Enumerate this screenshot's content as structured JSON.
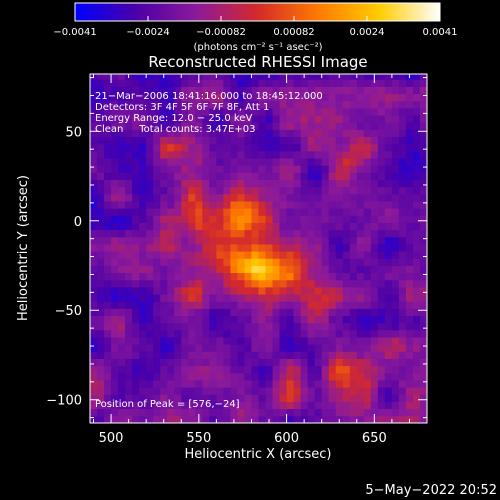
{
  "chart_data": {
    "type": "heatmap",
    "title": "Reconstructed RHESSI Image",
    "xlabel": "Heliocentric X (arcsec)",
    "ylabel": "Heliocentric Y (arcsec)",
    "xlim": [
      488,
      680
    ],
    "ylim": [
      -113,
      82
    ],
    "x_ticks": [
      "500",
      "550",
      "600",
      "650"
    ],
    "y_ticks": [
      "50",
      "0",
      "−50",
      "−100"
    ],
    "colorbar": {
      "range": [
        -0.0041,
        0.0041
      ],
      "ticks": [
        "−0.0041",
        "−0.0024",
        "−0.00082",
        "0.00082",
        "0.0024",
        "0.0041"
      ],
      "units": "(photons cm⁻² s⁻¹ asec⁻²)",
      "colors": [
        "#0000ff",
        "#4b00a8",
        "#8c1a9a",
        "#d42a2a",
        "#ff7a00",
        "#ffcc00",
        "#ffffff"
      ]
    },
    "annotations": [
      "21−Mar−2006 18:41:16.000 to 18:45:12.000",
      "Detectors: 3F 4F 5F 6F 7F 8F, Att 1",
      "Energy Range: 12.0 − 25.0 keV",
      "Clean     Total counts: 3.47E+03"
    ],
    "peak_label": "Position of Peak = [576,−24]",
    "peak_position": [
      576,
      -24
    ],
    "sources": [
      {
        "x": 576,
        "y": -24,
        "sx": 13,
        "sy": 10,
        "amp": 0.0041
      },
      {
        "x": 562,
        "y": 2,
        "sx": 13,
        "sy": 12,
        "amp": 0.0032
      },
      {
        "x": 548,
        "y": -25,
        "sx": 12,
        "sy": 14,
        "amp": 0.0019
      },
      {
        "x": 585,
        "y": 10,
        "sx": 10,
        "sy": 10,
        "amp": 0.0016
      },
      {
        "x": 600,
        "y": -32,
        "sx": 14,
        "sy": 10,
        "amp": 0.0014
      },
      {
        "x": 540,
        "y": 35,
        "sx": 14,
        "sy": 12,
        "amp": 0.0012
      },
      {
        "x": 640,
        "y": 33,
        "sx": 9,
        "sy": 8,
        "amp": 0.0013
      },
      {
        "x": 618,
        "y": -45,
        "sx": 10,
        "sy": 15,
        "amp": 0.001
      },
      {
        "x": 522,
        "y": 0,
        "sx": 9,
        "sy": 9,
        "amp": 0.0009
      },
      {
        "x": 600,
        "y": -98,
        "sx": 22,
        "sy": 10,
        "amp": 0.0013
      },
      {
        "x": 635,
        "y": -85,
        "sx": 14,
        "sy": 12,
        "amp": 0.0012
      },
      {
        "x": 505,
        "y": -100,
        "sx": 14,
        "sy": 10,
        "amp": 0.0008
      },
      {
        "x": 555,
        "y": -95,
        "sx": 12,
        "sy": 8,
        "amp": 0.0007
      },
      {
        "x": 665,
        "y": -50,
        "sx": 10,
        "sy": 14,
        "amp": 0.0009
      },
      {
        "x": 670,
        "y": 10,
        "sx": 9,
        "sy": 10,
        "amp": 0.0006
      }
    ],
    "background_level": -0.0016
  },
  "date_stamp": "5−May−2022 20:52"
}
